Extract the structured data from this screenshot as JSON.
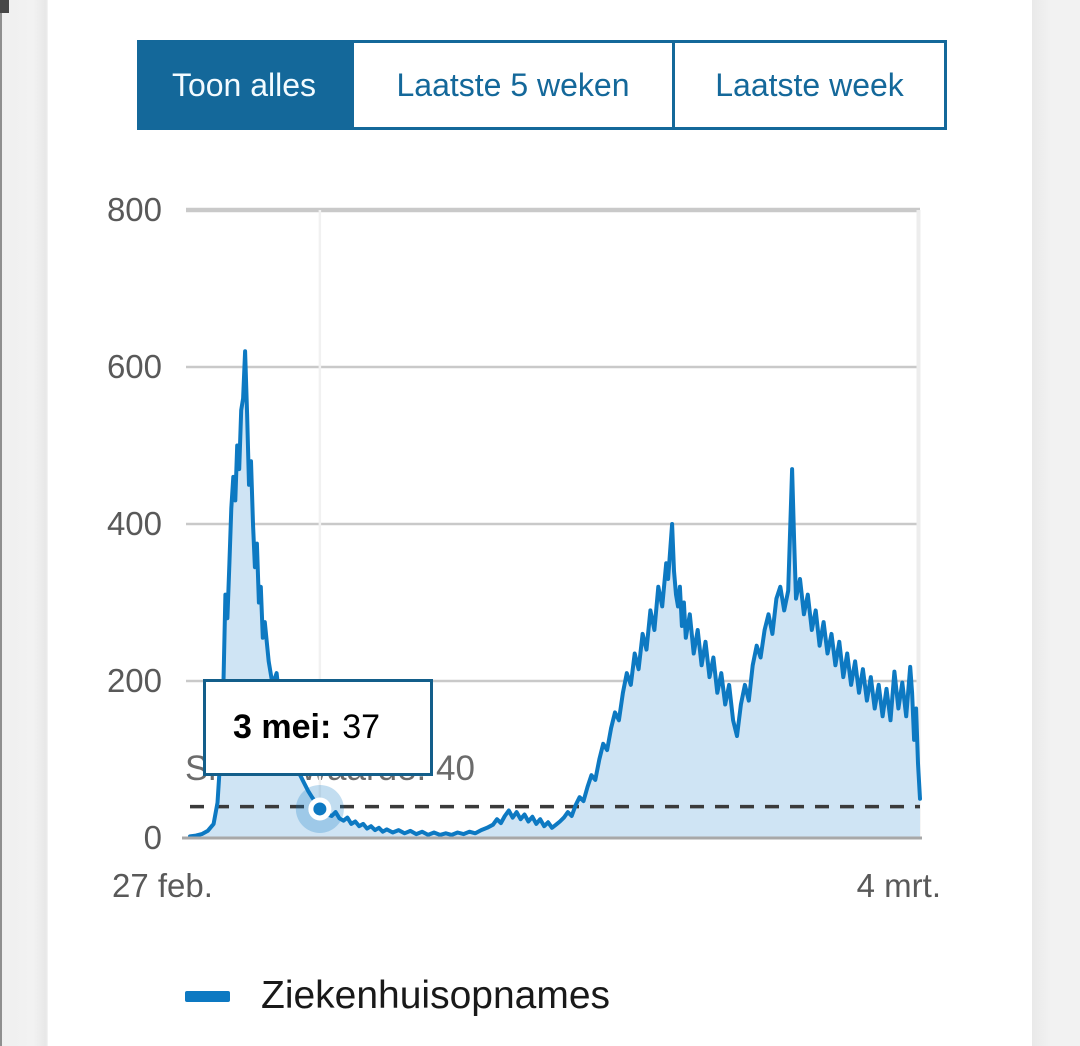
{
  "window": {
    "background": "#ffffff",
    "side_gutter_color": "#f1f1f1"
  },
  "tabs": {
    "items": [
      {
        "label": "Toon alles",
        "active": true
      },
      {
        "label": "Laatste 5 weken",
        "active": false
      },
      {
        "label": "Laatste week",
        "active": false
      }
    ]
  },
  "tooltip": {
    "date_label": "3 mei:",
    "value": "37"
  },
  "legend": {
    "items": [
      {
        "label": "Ziekenhuisopnames",
        "color": "#0d79c2"
      }
    ]
  },
  "axes": {
    "x_start_label": "27 feb.",
    "x_end_label": "4 mrt.",
    "y_tick_labels": [
      "0",
      "200",
      "400",
      "600",
      "800"
    ]
  },
  "colors": {
    "accent_blue": "#14689a",
    "line_blue": "#0d79c2",
    "area_fill": "#cfe4f4",
    "grid": "#c9c9c9",
    "axis_text": "#595959",
    "signal_text": "#6b6b6b",
    "dashed_line": "#3a3a3a",
    "halo": "rgba(13,121,194,0.25)"
  },
  "chart_data": {
    "type": "area",
    "title": "",
    "grid": true,
    "legend_position": "bottom",
    "x_axis": {
      "start_label": "27 feb.",
      "end_label": "4 mrt.",
      "domain_days": [
        0,
        371
      ]
    },
    "y_axis": {
      "ticks": [
        0,
        200,
        400,
        600,
        800
      ],
      "range": [
        0,
        800
      ]
    },
    "signal_value": {
      "label": "Signaalwaarde",
      "value": 40,
      "display": "Signaalwaarde: 40"
    },
    "highlight": {
      "day": 66,
      "date_label": "3 mei",
      "value": 37
    },
    "series": [
      {
        "name": "Ziekenhuisopnames",
        "color": "#0d79c2",
        "fill": "#cfe4f4",
        "points": [
          [
            0,
            2
          ],
          [
            3,
            3
          ],
          [
            6,
            5
          ],
          [
            9,
            9
          ],
          [
            12,
            18
          ],
          [
            14,
            45
          ],
          [
            15,
            85
          ],
          [
            16,
            130
          ],
          [
            17,
            200
          ],
          [
            18,
            310
          ],
          [
            19,
            280
          ],
          [
            20,
            350
          ],
          [
            21,
            420
          ],
          [
            22,
            460
          ],
          [
            23,
            430
          ],
          [
            24,
            500
          ],
          [
            25,
            470
          ],
          [
            26,
            545
          ],
          [
            27,
            560
          ],
          [
            28,
            620
          ],
          [
            29,
            540
          ],
          [
            30,
            450
          ],
          [
            31,
            480
          ],
          [
            32,
            400
          ],
          [
            33,
            345
          ],
          [
            34,
            375
          ],
          [
            35,
            300
          ],
          [
            36,
            320
          ],
          [
            37,
            255
          ],
          [
            38,
            275
          ],
          [
            40,
            225
          ],
          [
            42,
            195
          ],
          [
            44,
            210
          ],
          [
            46,
            165
          ],
          [
            48,
            148
          ],
          [
            50,
            128
          ],
          [
            52,
            108
          ],
          [
            54,
            95
          ],
          [
            56,
            80
          ],
          [
            58,
            70
          ],
          [
            60,
            60
          ],
          [
            62,
            52
          ],
          [
            64,
            45
          ],
          [
            66,
            37
          ],
          [
            68,
            34
          ],
          [
            70,
            30
          ],
          [
            72,
            28
          ],
          [
            74,
            33
          ],
          [
            76,
            25
          ],
          [
            78,
            22
          ],
          [
            80,
            26
          ],
          [
            82,
            18
          ],
          [
            84,
            21
          ],
          [
            86,
            15
          ],
          [
            88,
            18
          ],
          [
            90,
            12
          ],
          [
            92,
            15
          ],
          [
            94,
            10
          ],
          [
            96,
            13
          ],
          [
            98,
            8
          ],
          [
            100,
            11
          ],
          [
            103,
            7
          ],
          [
            106,
            10
          ],
          [
            109,
            6
          ],
          [
            112,
            9
          ],
          [
            115,
            5
          ],
          [
            118,
            8
          ],
          [
            121,
            4
          ],
          [
            124,
            7
          ],
          [
            127,
            4
          ],
          [
            130,
            6
          ],
          [
            133,
            4
          ],
          [
            136,
            7
          ],
          [
            139,
            5
          ],
          [
            142,
            8
          ],
          [
            145,
            6
          ],
          [
            148,
            10
          ],
          [
            151,
            13
          ],
          [
            154,
            17
          ],
          [
            156,
            24
          ],
          [
            158,
            19
          ],
          [
            160,
            28
          ],
          [
            162,
            35
          ],
          [
            164,
            26
          ],
          [
            166,
            33
          ],
          [
            168,
            24
          ],
          [
            170,
            30
          ],
          [
            172,
            21
          ],
          [
            174,
            27
          ],
          [
            176,
            18
          ],
          [
            178,
            24
          ],
          [
            180,
            15
          ],
          [
            182,
            20
          ],
          [
            184,
            13
          ],
          [
            186,
            17
          ],
          [
            188,
            21
          ],
          [
            190,
            26
          ],
          [
            192,
            33
          ],
          [
            194,
            28
          ],
          [
            196,
            42
          ],
          [
            198,
            52
          ],
          [
            200,
            47
          ],
          [
            202,
            65
          ],
          [
            204,
            80
          ],
          [
            206,
            74
          ],
          [
            208,
            100
          ],
          [
            210,
            120
          ],
          [
            212,
            112
          ],
          [
            214,
            140
          ],
          [
            216,
            160
          ],
          [
            218,
            150
          ],
          [
            220,
            185
          ],
          [
            222,
            210
          ],
          [
            224,
            195
          ],
          [
            226,
            235
          ],
          [
            228,
            215
          ],
          [
            230,
            260
          ],
          [
            232,
            240
          ],
          [
            234,
            290
          ],
          [
            236,
            265
          ],
          [
            238,
            320
          ],
          [
            240,
            295
          ],
          [
            242,
            350
          ],
          [
            243,
            330
          ],
          [
            244,
            365
          ],
          [
            245,
            400
          ],
          [
            246,
            340
          ],
          [
            247,
            310
          ],
          [
            248,
            295
          ],
          [
            249,
            320
          ],
          [
            250,
            270
          ],
          [
            251,
            300
          ],
          [
            252,
            255
          ],
          [
            254,
            285
          ],
          [
            256,
            235
          ],
          [
            258,
            265
          ],
          [
            260,
            220
          ],
          [
            262,
            250
          ],
          [
            264,
            205
          ],
          [
            266,
            230
          ],
          [
            268,
            185
          ],
          [
            270,
            210
          ],
          [
            272,
            170
          ],
          [
            274,
            195
          ],
          [
            276,
            150
          ],
          [
            278,
            130
          ],
          [
            280,
            170
          ],
          [
            282,
            195
          ],
          [
            284,
            175
          ],
          [
            286,
            220
          ],
          [
            288,
            245
          ],
          [
            290,
            230
          ],
          [
            292,
            265
          ],
          [
            294,
            285
          ],
          [
            296,
            260
          ],
          [
            298,
            305
          ],
          [
            300,
            320
          ],
          [
            302,
            290
          ],
          [
            304,
            315
          ],
          [
            306,
            470
          ],
          [
            307,
            380
          ],
          [
            308,
            305
          ],
          [
            310,
            330
          ],
          [
            312,
            285
          ],
          [
            314,
            310
          ],
          [
            316,
            265
          ],
          [
            318,
            290
          ],
          [
            320,
            245
          ],
          [
            322,
            275
          ],
          [
            324,
            235
          ],
          [
            326,
            260
          ],
          [
            328,
            220
          ],
          [
            330,
            250
          ],
          [
            332,
            205
          ],
          [
            334,
            235
          ],
          [
            336,
            195
          ],
          [
            338,
            225
          ],
          [
            340,
            185
          ],
          [
            342,
            215
          ],
          [
            344,
            175
          ],
          [
            346,
            205
          ],
          [
            348,
            165
          ],
          [
            350,
            195
          ],
          [
            352,
            155
          ],
          [
            354,
            190
          ],
          [
            356,
            150
          ],
          [
            358,
            212
          ],
          [
            360,
            165
          ],
          [
            362,
            198
          ],
          [
            364,
            155
          ],
          [
            366,
            218
          ],
          [
            367,
            185
          ],
          [
            368,
            125
          ],
          [
            369,
            165
          ],
          [
            370,
            95
          ],
          [
            371,
            50
          ]
        ]
      }
    ]
  }
}
